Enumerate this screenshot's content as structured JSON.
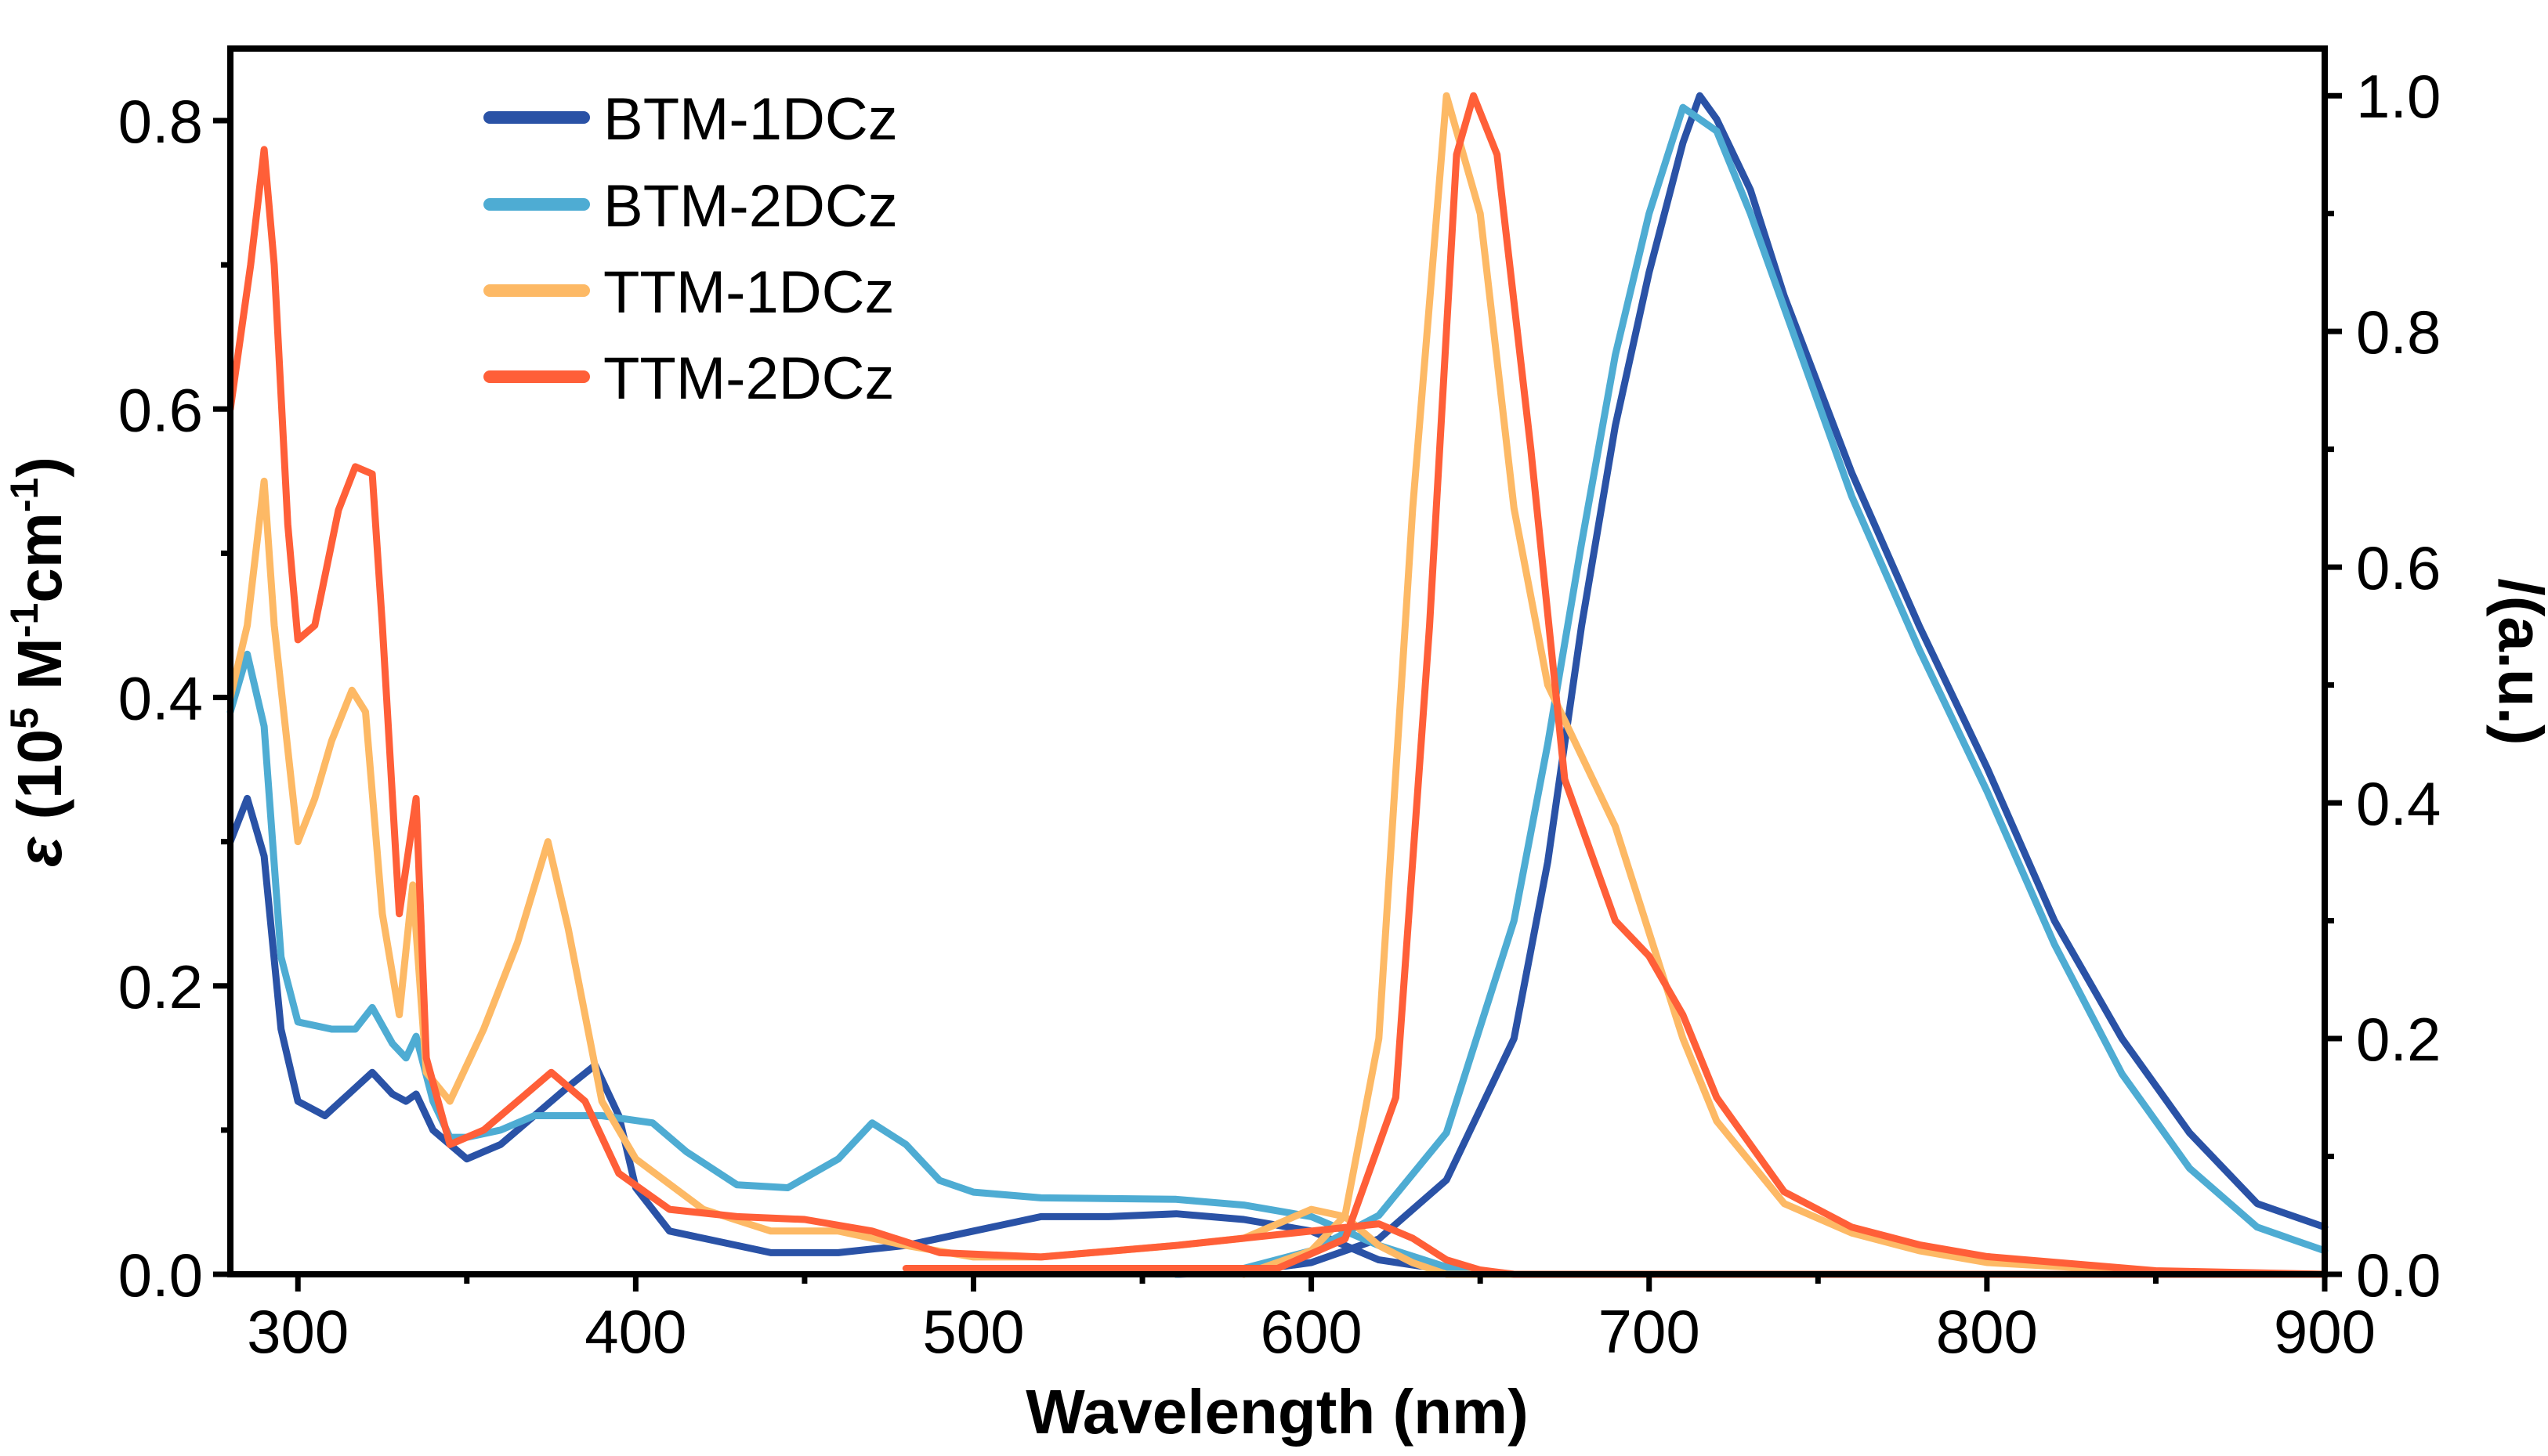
{
  "chart_data": {
    "type": "line",
    "xlabel": "Wavelength (nm)",
    "ylabel_left": {
      "symbol": "ε",
      "text": " (10",
      "sup1": "5",
      "mid": " M",
      "sup2": "-1",
      "mid2": "cm",
      "sup3": "-1",
      "end": ")"
    },
    "ylabel_right": "/(a.u.)",
    "xlim": [
      280,
      900
    ],
    "ylim_left": [
      0,
      0.85
    ],
    "ylim_right": [
      0,
      1.04
    ],
    "x_ticks": [
      "300",
      "400",
      "500",
      "600",
      "700",
      "800",
      "900"
    ],
    "y_left_ticks": [
      "0.0",
      "0.2",
      "0.4",
      "0.6",
      "0.8"
    ],
    "y_right_ticks": [
      "0.0",
      "0.2",
      "0.4",
      "0.6",
      "0.8",
      "1.0"
    ],
    "legend_position": "top-left",
    "series": [
      {
        "name": "BTM-1DCz",
        "color": "#2A52A6",
        "absorption": [
          [
            280,
            0.3
          ],
          [
            285,
            0.33
          ],
          [
            290,
            0.29
          ],
          [
            295,
            0.17
          ],
          [
            300,
            0.12
          ],
          [
            308,
            0.11
          ],
          [
            315,
            0.125
          ],
          [
            322,
            0.14
          ],
          [
            328,
            0.125
          ],
          [
            332,
            0.12
          ],
          [
            335,
            0.125
          ],
          [
            340,
            0.1
          ],
          [
            350,
            0.08
          ],
          [
            360,
            0.09
          ],
          [
            370,
            0.11
          ],
          [
            380,
            0.13
          ],
          [
            388,
            0.145
          ],
          [
            395,
            0.11
          ],
          [
            400,
            0.06
          ],
          [
            410,
            0.03
          ],
          [
            420,
            0.025
          ],
          [
            440,
            0.015
          ],
          [
            460,
            0.015
          ],
          [
            480,
            0.02
          ],
          [
            500,
            0.03
          ],
          [
            520,
            0.04
          ],
          [
            540,
            0.04
          ],
          [
            560,
            0.042
          ],
          [
            580,
            0.038
          ],
          [
            600,
            0.03
          ],
          [
            620,
            0.01
          ],
          [
            640,
            0.003
          ],
          [
            660,
            0
          ],
          [
            900,
            0
          ]
        ],
        "emission": [
          [
            560,
            0
          ],
          [
            580,
            0.002
          ],
          [
            600,
            0.01
          ],
          [
            620,
            0.03
          ],
          [
            640,
            0.08
          ],
          [
            660,
            0.2
          ],
          [
            670,
            0.35
          ],
          [
            680,
            0.55
          ],
          [
            690,
            0.72
          ],
          [
            700,
            0.85
          ],
          [
            710,
            0.96
          ],
          [
            715,
            1.0
          ],
          [
            720,
            0.98
          ],
          [
            730,
            0.92
          ],
          [
            740,
            0.83
          ],
          [
            760,
            0.68
          ],
          [
            780,
            0.55
          ],
          [
            800,
            0.43
          ],
          [
            820,
            0.3
          ],
          [
            840,
            0.2
          ],
          [
            860,
            0.12
          ],
          [
            880,
            0.06
          ],
          [
            900,
            0.04
          ]
        ]
      },
      {
        "name": "BTM-2DCz",
        "color": "#4EACD3",
        "absorption": [
          [
            280,
            0.39
          ],
          [
            285,
            0.43
          ],
          [
            290,
            0.38
          ],
          [
            295,
            0.22
          ],
          [
            300,
            0.175
          ],
          [
            310,
            0.17
          ],
          [
            317,
            0.17
          ],
          [
            322,
            0.185
          ],
          [
            328,
            0.16
          ],
          [
            332,
            0.15
          ],
          [
            335,
            0.165
          ],
          [
            340,
            0.12
          ],
          [
            345,
            0.095
          ],
          [
            350,
            0.095
          ],
          [
            360,
            0.1
          ],
          [
            370,
            0.11
          ],
          [
            390,
            0.11
          ],
          [
            405,
            0.105
          ],
          [
            415,
            0.085
          ],
          [
            430,
            0.062
          ],
          [
            445,
            0.06
          ],
          [
            460,
            0.08
          ],
          [
            470,
            0.105
          ],
          [
            480,
            0.09
          ],
          [
            490,
            0.065
          ],
          [
            500,
            0.057
          ],
          [
            520,
            0.053
          ],
          [
            560,
            0.052
          ],
          [
            580,
            0.048
          ],
          [
            600,
            0.04
          ],
          [
            620,
            0.02
          ],
          [
            640,
            0.005
          ],
          [
            660,
            0
          ],
          [
            900,
            0
          ]
        ],
        "emission": [
          [
            560,
            0
          ],
          [
            580,
            0.005
          ],
          [
            600,
            0.02
          ],
          [
            620,
            0.05
          ],
          [
            640,
            0.12
          ],
          [
            660,
            0.3
          ],
          [
            670,
            0.45
          ],
          [
            680,
            0.62
          ],
          [
            690,
            0.78
          ],
          [
            700,
            0.9
          ],
          [
            710,
            0.99
          ],
          [
            720,
            0.97
          ],
          [
            730,
            0.9
          ],
          [
            740,
            0.82
          ],
          [
            760,
            0.66
          ],
          [
            780,
            0.53
          ],
          [
            800,
            0.41
          ],
          [
            820,
            0.28
          ],
          [
            840,
            0.17
          ],
          [
            860,
            0.09
          ],
          [
            880,
            0.04
          ],
          [
            900,
            0.02
          ]
        ]
      },
      {
        "name": "TTM-1DCz",
        "color": "#FDB965",
        "absorption": [
          [
            280,
            0.4
          ],
          [
            285,
            0.45
          ],
          [
            290,
            0.55
          ],
          [
            293,
            0.45
          ],
          [
            300,
            0.3
          ],
          [
            305,
            0.33
          ],
          [
            310,
            0.37
          ],
          [
            316,
            0.405
          ],
          [
            320,
            0.39
          ],
          [
            325,
            0.25
          ],
          [
            330,
            0.18
          ],
          [
            334,
            0.27
          ],
          [
            338,
            0.14
          ],
          [
            345,
            0.12
          ],
          [
            355,
            0.17
          ],
          [
            365,
            0.23
          ],
          [
            374,
            0.3
          ],
          [
            380,
            0.24
          ],
          [
            390,
            0.12
          ],
          [
            400,
            0.08
          ],
          [
            420,
            0.045
          ],
          [
            440,
            0.03
          ],
          [
            460,
            0.03
          ],
          [
            480,
            0.02
          ],
          [
            500,
            0.012
          ],
          [
            520,
            0.012
          ],
          [
            560,
            0.02
          ],
          [
            580,
            0.025
          ],
          [
            600,
            0.045
          ],
          [
            610,
            0.04
          ],
          [
            620,
            0.02
          ],
          [
            630,
            0.008
          ],
          [
            640,
            0
          ],
          [
            900,
            0
          ]
        ],
        "emission": [
          [
            580,
            0
          ],
          [
            600,
            0.02
          ],
          [
            610,
            0.05
          ],
          [
            620,
            0.2
          ],
          [
            630,
            0.65
          ],
          [
            640,
            1.0
          ],
          [
            650,
            0.9
          ],
          [
            660,
            0.65
          ],
          [
            670,
            0.5
          ],
          [
            680,
            0.44
          ],
          [
            690,
            0.38
          ],
          [
            700,
            0.29
          ],
          [
            710,
            0.2
          ],
          [
            720,
            0.13
          ],
          [
            740,
            0.06
          ],
          [
            760,
            0.035
          ],
          [
            780,
            0.02
          ],
          [
            800,
            0.01
          ],
          [
            850,
            0.002
          ],
          [
            900,
            0
          ]
        ]
      },
      {
        "name": "TTM-2DCz",
        "color": "#FF5F38",
        "absorption": [
          [
            280,
            0.6
          ],
          [
            286,
            0.7
          ],
          [
            290,
            0.78
          ],
          [
            293,
            0.7
          ],
          [
            297,
            0.52
          ],
          [
            300,
            0.44
          ],
          [
            305,
            0.45
          ],
          [
            312,
            0.53
          ],
          [
            317,
            0.56
          ],
          [
            322,
            0.555
          ],
          [
            325,
            0.45
          ],
          [
            330,
            0.25
          ],
          [
            335,
            0.33
          ],
          [
            338,
            0.15
          ],
          [
            345,
            0.09
          ],
          [
            355,
            0.1
          ],
          [
            365,
            0.12
          ],
          [
            375,
            0.14
          ],
          [
            385,
            0.12
          ],
          [
            395,
            0.07
          ],
          [
            410,
            0.045
          ],
          [
            430,
            0.04
          ],
          [
            450,
            0.038
          ],
          [
            470,
            0.03
          ],
          [
            490,
            0.015
          ],
          [
            520,
            0.012
          ],
          [
            560,
            0.02
          ],
          [
            600,
            0.03
          ],
          [
            620,
            0.035
          ],
          [
            630,
            0.025
          ],
          [
            640,
            0.01
          ],
          [
            650,
            0.003
          ],
          [
            660,
            0
          ],
          [
            900,
            0
          ]
        ],
        "emission": [
          [
            480,
            0.005
          ],
          [
            540,
            0.005
          ],
          [
            590,
            0.005
          ],
          [
            610,
            0.03
          ],
          [
            625,
            0.15
          ],
          [
            635,
            0.55
          ],
          [
            643,
            0.95
          ],
          [
            648,
            1.0
          ],
          [
            655,
            0.95
          ],
          [
            665,
            0.7
          ],
          [
            675,
            0.42
          ],
          [
            690,
            0.3
          ],
          [
            700,
            0.27
          ],
          [
            710,
            0.22
          ],
          [
            720,
            0.15
          ],
          [
            740,
            0.07
          ],
          [
            760,
            0.04
          ],
          [
            780,
            0.025
          ],
          [
            800,
            0.015
          ],
          [
            850,
            0.003
          ],
          [
            900,
            0
          ]
        ]
      }
    ]
  }
}
